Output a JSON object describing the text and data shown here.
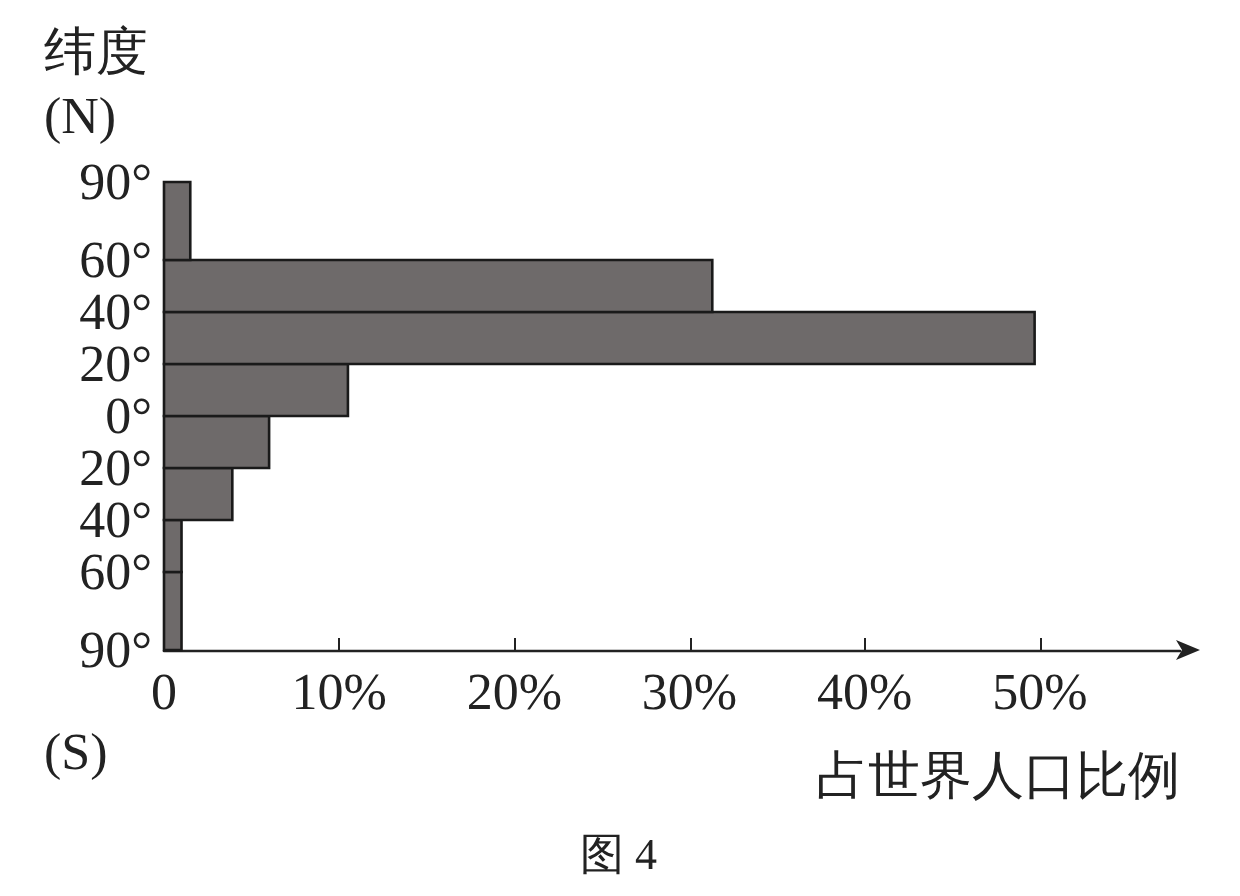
{
  "chart_data": {
    "type": "histogram",
    "orientation": "horizontal",
    "xlabel": "占世界人口比例",
    "ylabel": "纬度\n(N)",
    "annotations": [
      "(S)",
      "图 4"
    ],
    "bins": [
      -90,
      -60,
      -40,
      -20,
      0,
      20,
      40,
      60,
      90
    ],
    "values": [
      1.0,
      1.0,
      3.9,
      6.0,
      10.5,
      49.7,
      31.3,
      1.5
    ],
    "color": "#6e6a6a",
    "xlim": [
      0,
      58
    ],
    "xticks": [
      0,
      {
        "value": 10,
        "label": "10%"
      },
      {
        "value": 20,
        "label": "20%"
      },
      {
        "value": 30,
        "label": "30%"
      },
      {
        "value": 40,
        "label": "40%"
      },
      {
        "value": 50,
        "label": "50%"
      }
    ],
    "ylim": [
      -90,
      90
    ],
    "yticks": [
      {
        "value": -90,
        "label": "90°"
      },
      {
        "value": -60,
        "label": "60°"
      },
      {
        "value": -40,
        "label": "40°"
      },
      {
        "value": -20,
        "label": "20°"
      },
      {
        "value": 0,
        "label": "0°"
      },
      {
        "value": 20,
        "label": "20°"
      },
      {
        "value": 40,
        "label": "40°"
      },
      {
        "value": 60,
        "label": "60°"
      },
      {
        "value": 90,
        "label": "90°"
      }
    ],
    "grid": false
  }
}
